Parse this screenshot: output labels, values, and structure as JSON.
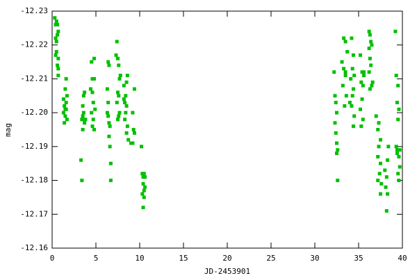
{
  "chart_data": {
    "type": "scatter",
    "x_label": "JD-2453901",
    "y_label": "mag",
    "color": "#00c000",
    "xlim": [
      0,
      40
    ],
    "xticks": [
      0,
      5,
      10,
      15,
      20,
      25,
      30,
      35,
      40
    ],
    "ylim": [
      -12.16,
      -12.23
    ],
    "yticks": [
      -12.16,
      -12.17,
      -12.18,
      -12.19,
      {
        "value": -12.2,
        "label": "-12.20"
      },
      -12.21,
      -12.22,
      -12.23
    ],
    "x": [
      0.3,
      0.4,
      0.5,
      0.6,
      0.4,
      0.6,
      0.7,
      0.5,
      0.4,
      0.5,
      0.7,
      0.6,
      0.7,
      0.7,
      1.3,
      1.4,
      1.5,
      1.3,
      1.5,
      1.6,
      1.7,
      1.5,
      1.6,
      1.4,
      1.7,
      1.6,
      3.3,
      3.4,
      3.5,
      3.6,
      3.7,
      3.5,
      3.6,
      3.7,
      3.5,
      3.8,
      3.4,
      4.5,
      4.8,
      4.6,
      4.8,
      4.4,
      4.6,
      4.7,
      4.5,
      4.7,
      4.6,
      4.8,
      4.9,
      6.3,
      6.4,
      6.5,
      6.4,
      6.3,
      6.5,
      6.6,
      6.5,
      6.6,
      6.7,
      6.7,
      6.4,
      7.3,
      7.5,
      7.4,
      7.6,
      7.7,
      7.5,
      7.6,
      7.4,
      7.7,
      7.5,
      7.8,
      7.6,
      8.2,
      8.4,
      8.5,
      8.6,
      8.3,
      8.5,
      8.4,
      8.3,
      8.6,
      8.5,
      8.7,
      8.2,
      9.2,
      9.3,
      9.4,
      9.2,
      9.0,
      9.4,
      10.2,
      10.3,
      10.4,
      10.5,
      10.6,
      10.4,
      10.5,
      10.3,
      10.5,
      10.4,
      10.6,
      32.2,
      32.4,
      32.5,
      32.3,
      32.4,
      32.5,
      32.6,
      32.6,
      32.5,
      32.3,
      33.1,
      33.3,
      33.5,
      33.3,
      33.5,
      33.2,
      33.6,
      33.4,
      33.5,
      33.7,
      34.2,
      34.4,
      34.3,
      34.1,
      34.5,
      34.4,
      34.3,
      34.2,
      34.5,
      34.4,
      34.0,
      35.2,
      35.4,
      35.6,
      35.3,
      35.5,
      35.4,
      35.2,
      35.5,
      35.3,
      35.6,
      36.2,
      36.3,
      36.4,
      36.2,
      36.5,
      36.3,
      36.4,
      36.2,
      36.5,
      36.3,
      36.6,
      37.0,
      37.3,
      37.2,
      37.5,
      37.3,
      37.2,
      37.5,
      37.4,
      37.2,
      37.6,
      37.5,
      38.0,
      38.2,
      38.1,
      38.3,
      38.2,
      38.4,
      38.3,
      39.2,
      39.3,
      39.5,
      39.4,
      39.6,
      39.5,
      39.3,
      39.6,
      39.4,
      39.7,
      39.5,
      39.6,
      39.4,
      39.7
    ],
    "values": [
      -12.228,
      -12.226,
      -12.227,
      -12.226,
      -12.222,
      -12.223,
      -12.224,
      -12.221,
      -12.217,
      -12.218,
      -12.216,
      -12.214,
      -12.213,
      -12.211,
      -12.204,
      -12.202,
      -12.201,
      -12.2,
      -12.199,
      -12.203,
      -12.205,
      -12.207,
      -12.21,
      -12.197,
      -12.198,
      -12.201,
      -12.186,
      -12.18,
      -12.202,
      -12.205,
      -12.206,
      -12.199,
      -12.2,
      -12.197,
      -12.195,
      -12.198,
      -12.198,
      -12.215,
      -12.216,
      -12.21,
      -12.21,
      -12.207,
      -12.206,
      -12.203,
      -12.2,
      -12.198,
      -12.196,
      -12.195,
      -12.201,
      -12.207,
      -12.215,
      -12.214,
      -12.203,
      -12.2,
      -12.197,
      -12.196,
      -12.193,
      -12.19,
      -12.185,
      -12.18,
      -12.199,
      -12.217,
      -12.216,
      -12.221,
      -12.214,
      -12.21,
      -12.206,
      -12.205,
      -12.203,
      -12.2,
      -12.198,
      -12.211,
      -12.199,
      -12.208,
      -12.205,
      -12.209,
      -12.211,
      -12.203,
      -12.202,
      -12.2,
      -12.198,
      -12.196,
      -12.194,
      -12.192,
      -12.204,
      -12.2,
      -12.195,
      -12.194,
      -12.191,
      -12.191,
      -12.207,
      -12.19,
      -12.182,
      -12.181,
      -12.182,
      -12.181,
      -12.179,
      -12.177,
      -12.176,
      -12.175,
      -12.172,
      -12.178,
      -12.212,
      -12.203,
      -12.2,
      -12.197,
      -12.194,
      -12.191,
      -12.189,
      -12.18,
      -12.188,
      -12.205,
      -12.215,
      -12.222,
      -12.221,
      -12.213,
      -12.211,
      -12.208,
      -12.205,
      -12.202,
      -12.212,
      -12.218,
      -12.222,
      -12.217,
      -12.213,
      -12.21,
      -12.211,
      -12.207,
      -12.205,
      -12.202,
      -12.199,
      -12.196,
      -12.203,
      -12.217,
      -12.212,
      -12.211,
      -12.209,
      -12.208,
      -12.204,
      -12.201,
      -12.198,
      -12.196,
      -12.212,
      -12.224,
      -12.223,
      -12.221,
      -12.219,
      -12.22,
      -12.216,
      -12.214,
      -12.212,
      -12.208,
      -12.207,
      -12.209,
      -12.199,
      -12.197,
      -12.195,
      -12.192,
      -12.19,
      -12.187,
      -12.185,
      -12.182,
      -12.18,
      -12.179,
      -12.176,
      -12.183,
      -12.181,
      -12.178,
      -12.176,
      -12.171,
      -12.19,
      -12.186,
      -12.224,
      -12.211,
      -12.208,
      -12.203,
      -12.201,
      -12.198,
      -12.19,
      -12.187,
      -12.188,
      -12.184,
      -12.182,
      -12.18,
      -12.189,
      -12.189
    ]
  }
}
